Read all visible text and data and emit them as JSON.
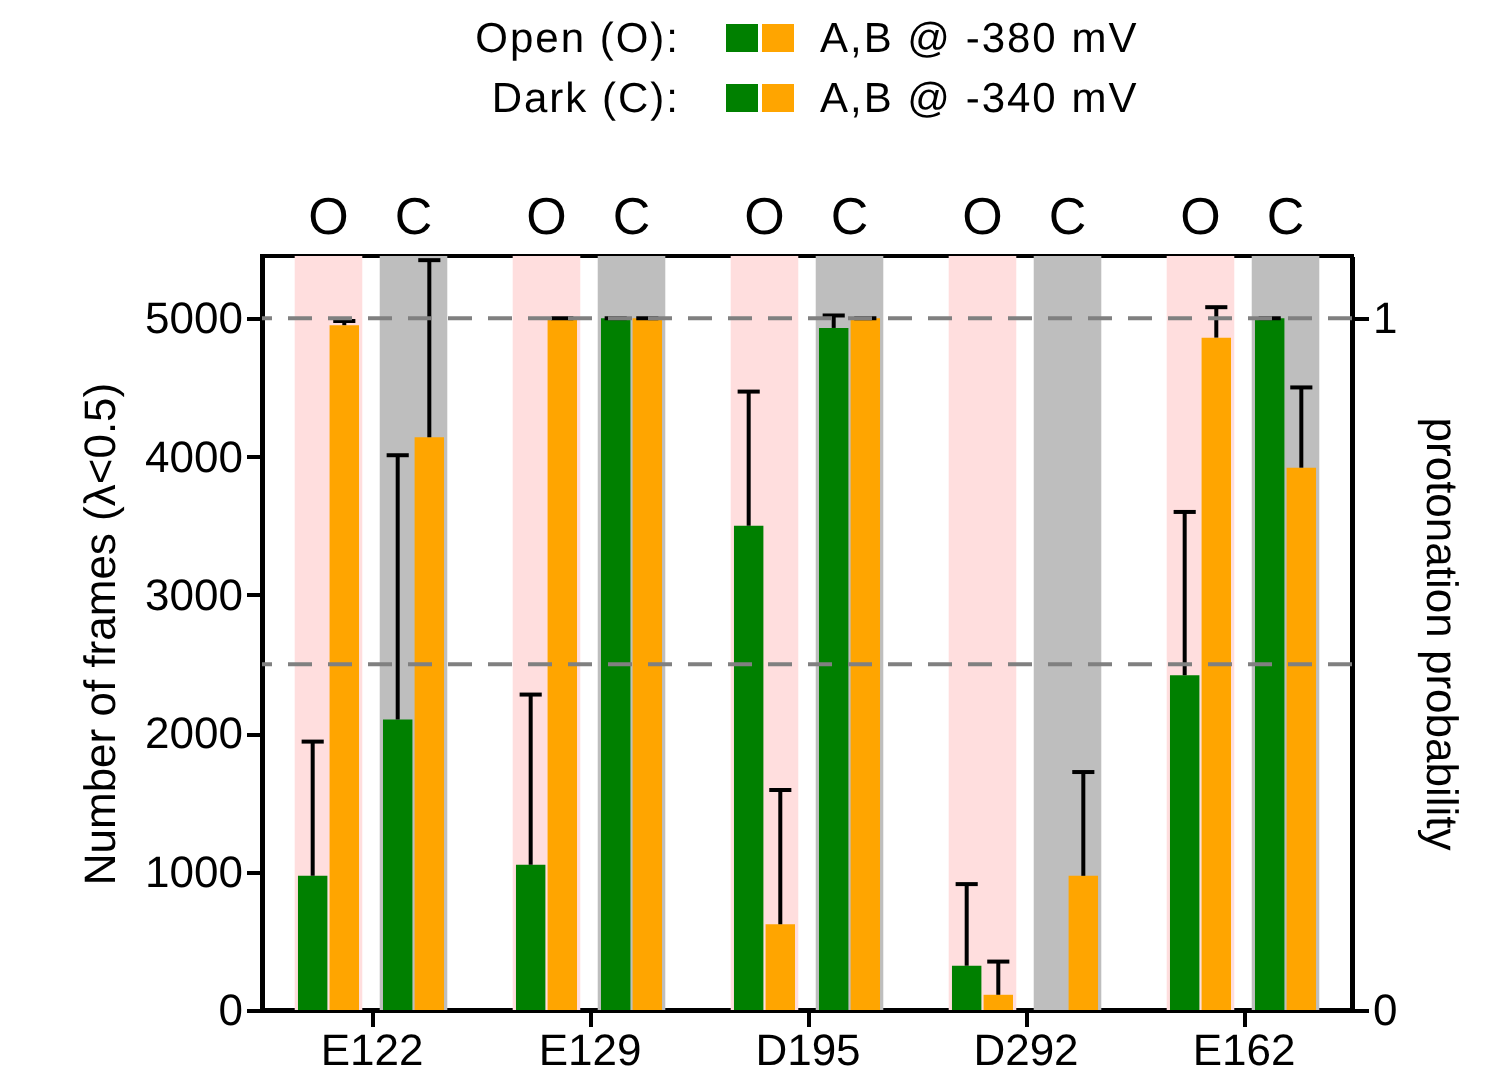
{
  "chart_data": {
    "type": "bar",
    "ylabel": "Number of frames (λ<0.5)",
    "y2label": "protonation probability",
    "categories": [
      "E122",
      "E129",
      "D195",
      "D292",
      "E162"
    ],
    "series": [
      {
        "color": "#008000",
        "values": [
          970,
          1050,
          3500,
          320,
          2420
        ],
        "errors": [
          [
            970,
            1940
          ],
          [
            1050,
            2280
          ],
          [
            3500,
            4470
          ],
          [
            320,
            910
          ],
          [
            2420,
            3600
          ]
        ]
      },
      {
        "color": "#ffa500",
        "values": [
          4950,
          5000,
          620,
          110,
          4860
        ],
        "errors": [
          [
            4950,
            4980
          ],
          [
            5000,
            5000
          ],
          [
            620,
            1590
          ],
          [
            110,
            350
          ],
          [
            4860,
            5080
          ]
        ]
      },
      {
        "color": "#008000",
        "values": [
          2100,
          5000,
          4930,
          0,
          5000
        ],
        "errors": [
          [
            2100,
            4010
          ],
          [
            5000,
            5000
          ],
          [
            4930,
            5020
          ],
          null,
          [
            5000,
            5000
          ]
        ]
      },
      {
        "color": "#ffa500",
        "values": [
          4140,
          5000,
          5000,
          970,
          3920
        ],
        "errors": [
          [
            4140,
            5420
          ],
          [
            5000,
            5000
          ],
          [
            5000,
            5000
          ],
          [
            970,
            1720
          ],
          [
            3920,
            4500
          ]
        ]
      }
    ],
    "ylim": [
      0,
      5450
    ],
    "yticks": [
      0,
      1000,
      2000,
      3000,
      4000,
      5000
    ],
    "y2lim": [
      0,
      1.09
    ],
    "y2ticks": [
      0,
      1
    ],
    "ref_lines": [
      {
        "axis": "y2",
        "value": 1,
        "color": "#808080",
        "line_style": "dashed"
      },
      {
        "axis": "y2",
        "value": 0.5,
        "color": "#808080",
        "line_style": "dashed"
      }
    ],
    "bands": [
      {
        "axis": "x",
        "from": "E122",
        "to": "E122",
        "label": "O",
        "color": "#ffdede"
      },
      {
        "axis": "x",
        "from": "E122",
        "to": "E122",
        "label": "C",
        "color": "#bebebe"
      },
      {
        "axis": "x",
        "from": "E129",
        "to": "E129",
        "label": "O",
        "color": "#ffdede"
      },
      {
        "axis": "x",
        "from": "E129",
        "to": "E129",
        "label": "C",
        "color": "#bebebe"
      },
      {
        "axis": "x",
        "from": "D195",
        "to": "D195",
        "label": "O",
        "color": "#ffdede"
      },
      {
        "axis": "x",
        "from": "D195",
        "to": "D195",
        "label": "C",
        "color": "#bebebe"
      },
      {
        "axis": "x",
        "from": "D292",
        "to": "D292",
        "label": "O",
        "color": "#ffdede"
      },
      {
        "axis": "x",
        "from": "D292",
        "to": "D292",
        "label": "C",
        "color": "#bebebe"
      },
      {
        "axis": "x",
        "from": "E162",
        "to": "E162",
        "label": "O",
        "color": "#ffdede"
      },
      {
        "axis": "x",
        "from": "E162",
        "to": "E162",
        "label": "C",
        "color": "#bebebe"
      }
    ],
    "annotations": [
      "Open (O):",
      "A,B @ -380 mV",
      "Dark (C):",
      "A,B @ -340 mV"
    ],
    "grid": false
  }
}
